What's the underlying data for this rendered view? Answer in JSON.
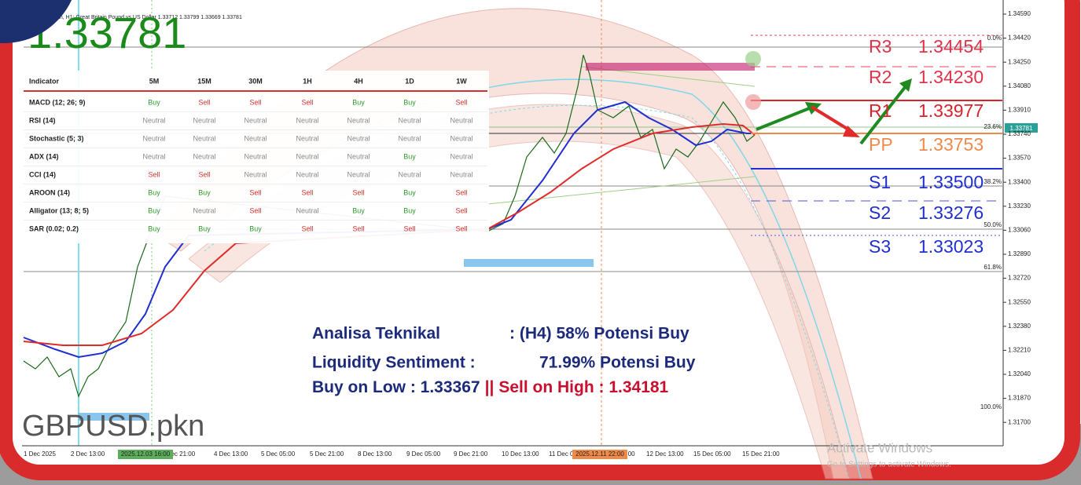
{
  "header": "GBPUSD.pkn, H1:  Great Britain Pound vs US Dollar  1.33712 1.33799 1.33669 1.33781",
  "last_price": "1.33781",
  "current_price_tag": "1.33781",
  "table": {
    "header": [
      "Indicator",
      "5M",
      "15M",
      "30M",
      "1H",
      "4H",
      "1D",
      "1W"
    ],
    "rows": [
      [
        "MACD (12; 26; 9)",
        "Buy",
        "Sell",
        "Sell",
        "Sell",
        "Buy",
        "Buy",
        "Sell"
      ],
      [
        "RSI (14)",
        "Neutral",
        "Neutral",
        "Neutral",
        "Neutral",
        "Neutral",
        "Neutral",
        "Neutral"
      ],
      [
        "Stochastic (5; 3)",
        "Neutral",
        "Neutral",
        "Neutral",
        "Neutral",
        "Neutral",
        "Neutral",
        "Neutral"
      ],
      [
        "ADX (14)",
        "Neutral",
        "Neutral",
        "Neutral",
        "Neutral",
        "Neutral",
        "Buy",
        "Neutral"
      ],
      [
        "CCI (14)",
        "Sell",
        "Sell",
        "Neutral",
        "Neutral",
        "Neutral",
        "Neutral",
        "Neutral"
      ],
      [
        "AROON (14)",
        "Buy",
        "Buy",
        "Sell",
        "Sell",
        "Sell",
        "Buy",
        "Sell"
      ],
      [
        "Alligator (13; 8; 5)",
        "Buy",
        "Neutral",
        "Sell",
        "Neutral",
        "Buy",
        "Buy",
        "Sell"
      ],
      [
        "SAR (0.02; 0.2)",
        "Buy",
        "Buy",
        "Buy",
        "Sell",
        "Sell",
        "Sell",
        "Sell"
      ]
    ]
  },
  "pivots": [
    {
      "label": "R3",
      "value": "1.34454",
      "color": "#e0334a"
    },
    {
      "label": "R2",
      "value": "1.34230",
      "color": "#e0334a"
    },
    {
      "label": "R1",
      "value": "1.33977",
      "color": "#d8232a"
    },
    {
      "label": "PP",
      "value": "1.33753",
      "color": "#f08a4b"
    },
    {
      "label": "S1",
      "value": "1.33500",
      "color": "#1f2fd0"
    },
    {
      "label": "S2",
      "value": "1.33276",
      "color": "#1f2fd0"
    },
    {
      "label": "S3",
      "value": "1.33023",
      "color": "#1f2fd0"
    }
  ],
  "price_axis": [
    "1.34590",
    "1.34420",
    "1.34250",
    "1.34080",
    "1.33910",
    "1.33740",
    "1.33570",
    "1.33400",
    "1.33230",
    "1.33060",
    "1.32890",
    "1.32720",
    "1.32550",
    "1.32380",
    "1.32210",
    "1.32040",
    "1.31870",
    "1.31700"
  ],
  "fib_levels": [
    "0.0%",
    "23.6%",
    "38.2%",
    "50.0%",
    "61.8%",
    "100.0%"
  ],
  "time_axis": [
    "1 Dec 2025",
    "2 Dec 13:00",
    "3 Dec 21:00",
    "4 Dec 13:00",
    "5 Dec 05:00",
    "5 Dec 21:00",
    "8 Dec 13:00",
    "9 Dec 05:00",
    "9 Dec 21:00",
    "10 Dec 13:00",
    "11 Dec 05:00",
    "12 Dec 05:00",
    "12 Dec 13:00",
    "15 Dec 05:00",
    "15 Dec 21:00"
  ],
  "time_highlights": [
    "2025.12.03 16:00",
    "2025.12.11 22:00"
  ],
  "symbol_watermark": "GBPUSD.pkn",
  "watermark": [
    "Activate Windows",
    "Go to Settings to activate Windows."
  ],
  "analysis": [
    {
      "label": "Analisa Teknikal",
      "value": ": (H4) 58% Potensi Buy"
    },
    {
      "label": "Liquidity Sentiment :",
      "value": "71.99% Potensi Buy"
    },
    {
      "buy": "Buy on Low : 1.33367",
      "separator": "||",
      "sell": "Sell on High : 1.34181"
    }
  ]
}
